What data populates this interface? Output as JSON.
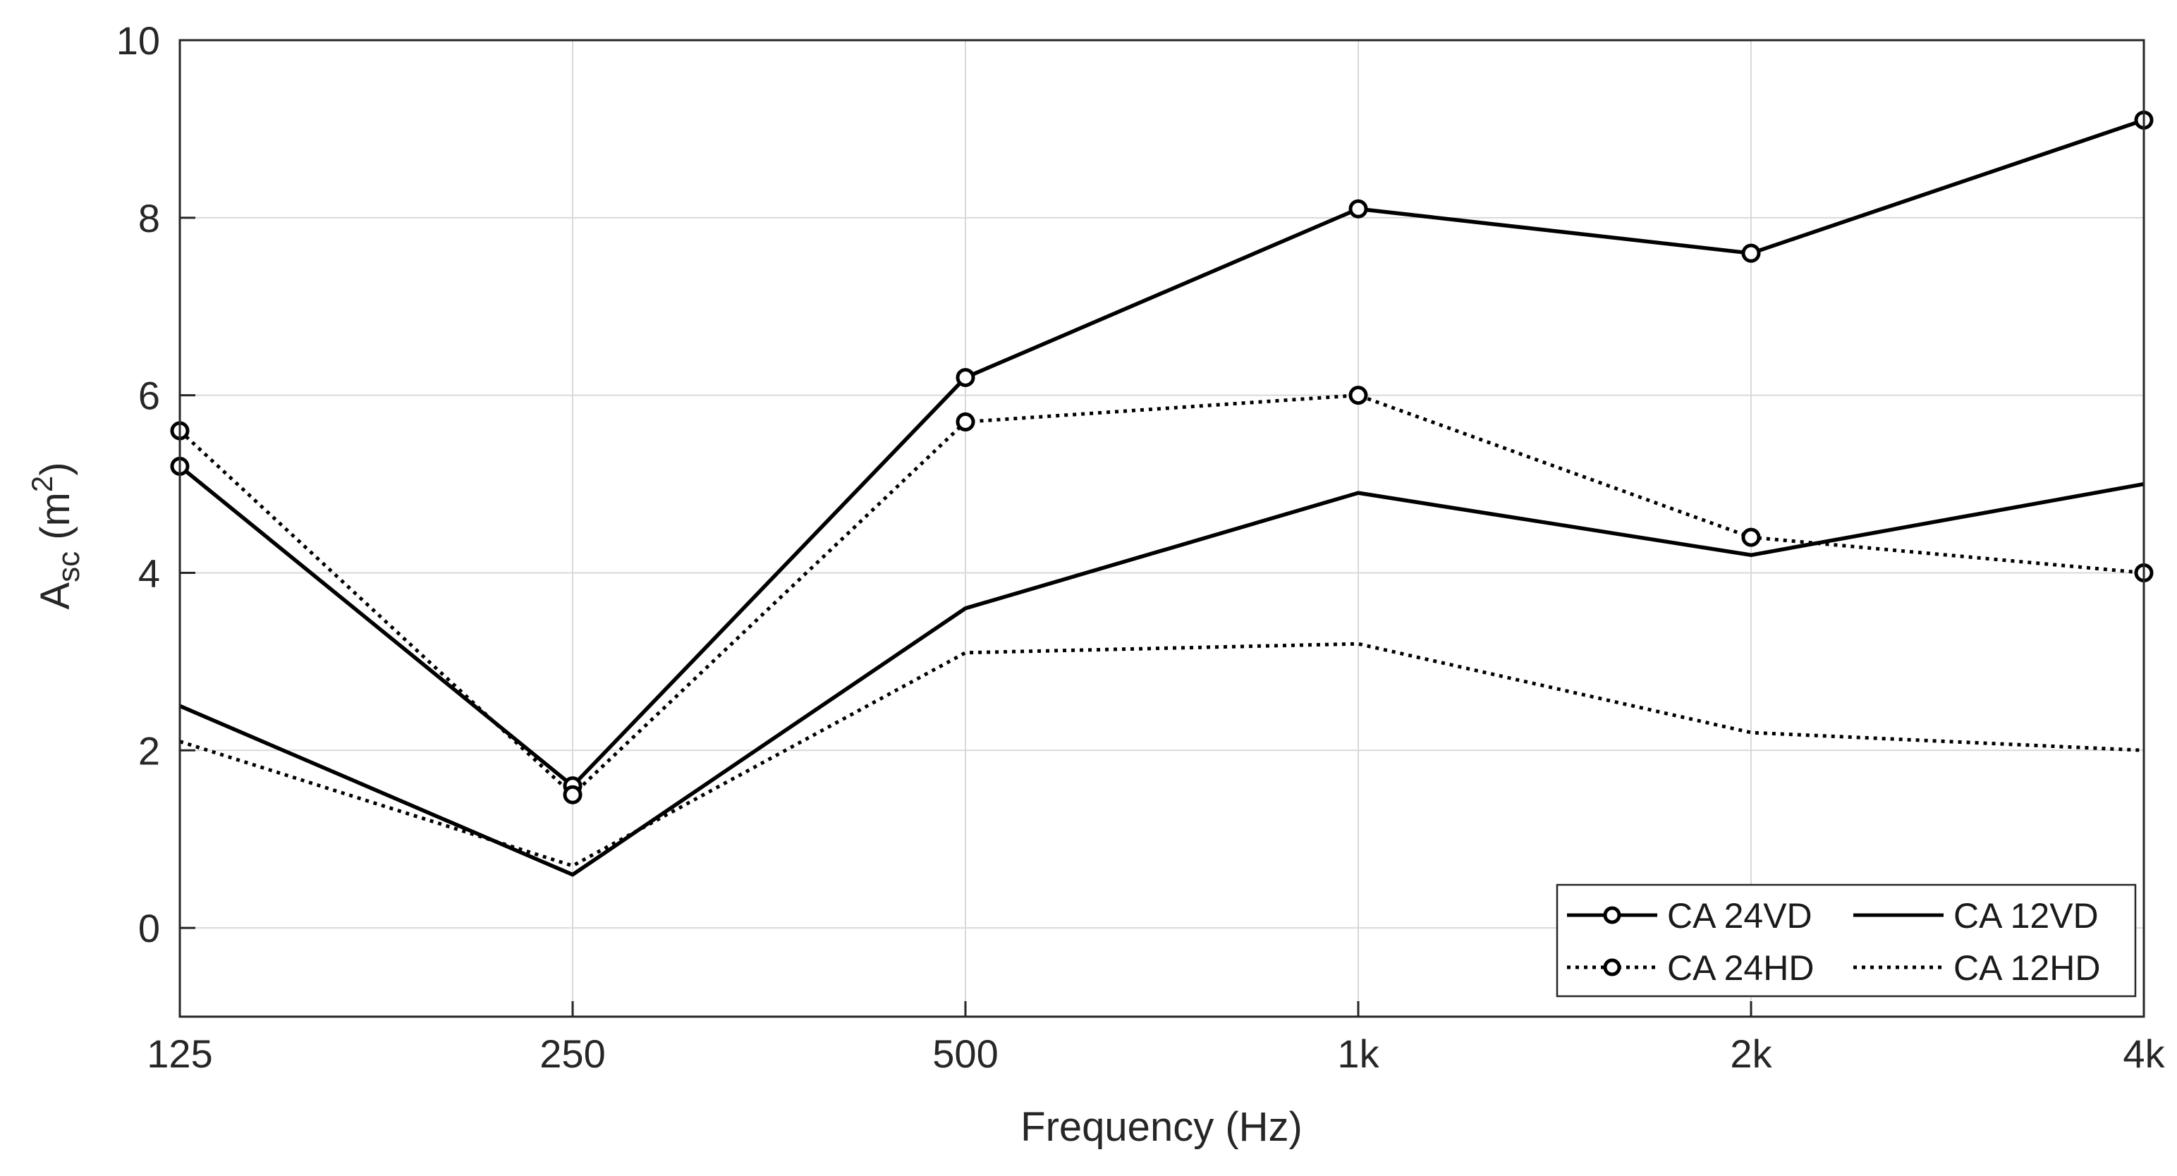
{
  "chart_data": {
    "type": "line",
    "title": "",
    "xlabel": "Frequency (Hz)",
    "ylabel_main": "A",
    "ylabel_sub": "sc",
    "ylabel_unit_open": " (m",
    "ylabel_unit_sup": "2",
    "ylabel_unit_close": ")",
    "categories": [
      "125",
      "250",
      "500",
      "1k",
      "2k",
      "4k"
    ],
    "ylim": [
      -1,
      10
    ],
    "yticks": [
      0,
      2,
      4,
      6,
      8,
      10
    ],
    "ytick_labels": [
      "0",
      "2",
      "4",
      "6",
      "8",
      "10"
    ],
    "grid": true,
    "legend_position": "bottom-right",
    "colors": {
      "line": "#000000",
      "grid": "#d9d9d9",
      "axis": "#262626"
    },
    "series": [
      {
        "name": "CA 24VD",
        "style": "solid",
        "marker": "circle",
        "values": [
          5.2,
          1.6,
          6.2,
          8.1,
          7.6,
          9.1
        ]
      },
      {
        "name": "CA 12VD",
        "style": "solid",
        "marker": "none",
        "values": [
          2.5,
          0.6,
          3.6,
          4.9,
          4.2,
          5.0
        ]
      },
      {
        "name": "CA 24HD",
        "style": "dotted",
        "marker": "circle",
        "values": [
          5.6,
          1.5,
          5.7,
          6.0,
          4.4,
          4.0
        ]
      },
      {
        "name": "CA 12HD",
        "style": "dotted",
        "marker": "none",
        "values": [
          2.1,
          0.7,
          3.1,
          3.2,
          2.2,
          2.0
        ]
      }
    ]
  }
}
